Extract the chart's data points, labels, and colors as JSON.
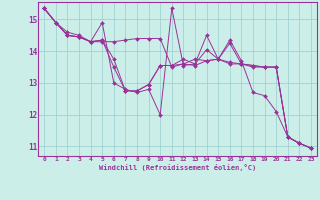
{
  "xlabel": "Windchill (Refroidissement éolien,°C)",
  "xlim": [
    -0.5,
    23.5
  ],
  "ylim": [
    10.7,
    15.55
  ],
  "xticks": [
    0,
    1,
    2,
    3,
    4,
    5,
    6,
    7,
    8,
    9,
    10,
    11,
    12,
    13,
    14,
    15,
    16,
    17,
    18,
    19,
    20,
    21,
    22,
    23
  ],
  "yticks": [
    11,
    12,
    13,
    14,
    15
  ],
  "background_color": "#cceee8",
  "line_color": "#993399",
  "grid_color": "#99cccc",
  "series": [
    [
      15.35,
      14.9,
      14.5,
      14.45,
      14.3,
      14.3,
      14.3,
      14.35,
      14.4,
      14.4,
      14.4,
      13.5,
      13.6,
      13.55,
      13.7,
      13.75,
      13.65,
      13.6,
      13.5,
      13.5,
      13.5,
      11.3,
      11.1,
      10.95
    ],
    [
      15.35,
      14.9,
      14.6,
      14.5,
      14.3,
      14.9,
      13.0,
      12.8,
      12.7,
      12.8,
      12.0,
      15.35,
      13.55,
      13.6,
      14.05,
      13.75,
      14.35,
      13.7,
      12.7,
      12.6,
      12.1,
      11.3,
      11.1,
      10.95
    ],
    [
      15.35,
      14.9,
      14.5,
      14.45,
      14.3,
      14.35,
      13.75,
      12.75,
      12.75,
      12.95,
      13.55,
      13.55,
      13.6,
      13.75,
      13.7,
      13.75,
      13.6,
      13.6,
      13.55,
      13.5,
      13.5,
      11.3,
      11.1,
      10.95
    ],
    [
      15.35,
      14.9,
      14.5,
      14.45,
      14.3,
      14.35,
      13.5,
      12.75,
      12.75,
      12.95,
      13.55,
      13.55,
      13.75,
      13.6,
      14.5,
      13.75,
      14.25,
      13.6,
      13.55,
      13.5,
      13.5,
      11.3,
      11.1,
      10.95
    ]
  ]
}
